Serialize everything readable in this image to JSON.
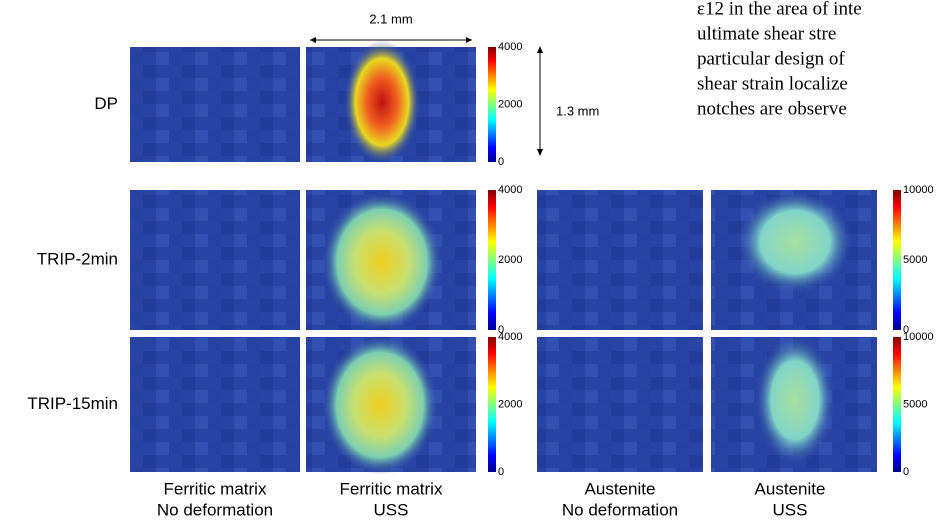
{
  "paragraph_lines": [
    "ε12 in the area of inte",
    "ultimate shear stre",
    "particular design of",
    "shear strain localize",
    "notches are observe"
  ],
  "scale": {
    "width": "2.1 mm",
    "height": "1.3 mm"
  },
  "rows": [
    "DP",
    "TRIP-2min",
    "TRIP-15min"
  ],
  "columns": [
    {
      "line1": "Ferritic matrix",
      "line2": "No deformation"
    },
    {
      "line1": "Ferritic matrix",
      "line2": "USS"
    },
    {
      "line1": "Austenite",
      "line2": "No deformation"
    },
    {
      "line1": "Austenite",
      "line2": "USS"
    }
  ],
  "colorbars": [
    {
      "ticks": [
        4000,
        2000,
        0
      ]
    },
    {
      "ticks": [
        4000,
        2000,
        0
      ]
    },
    {
      "ticks": [
        10000,
        5000,
        0
      ]
    },
    {
      "ticks": [
        4000,
        2000,
        0
      ]
    },
    {
      "ticks": [
        10000,
        5000,
        0
      ]
    }
  ]
}
